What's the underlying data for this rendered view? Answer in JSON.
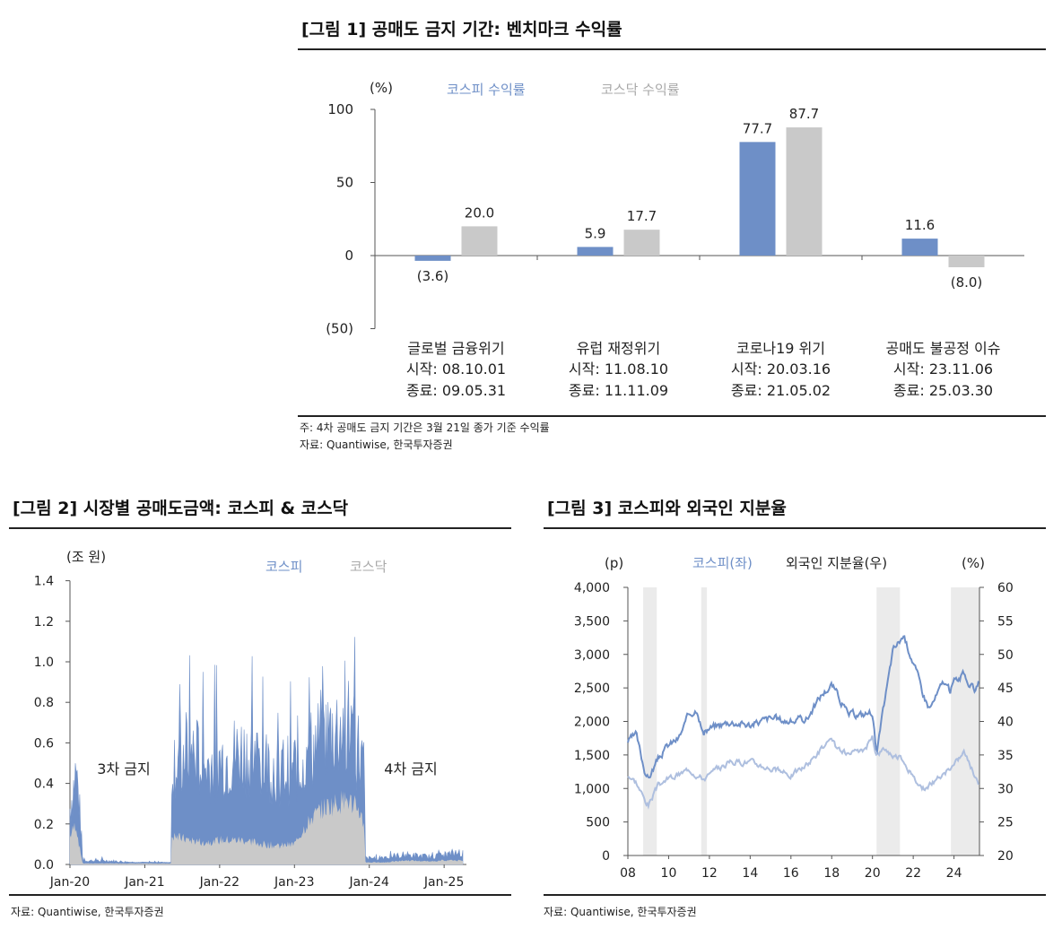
{
  "figures": {
    "fig1": {
      "title": "[그림 1] 공매도 금지 기간: 벤치마크 수익률",
      "note1": "주: 4차 공매도 금지 기간은 3월 21일 종가 기준 수익률",
      "note2": "자료: Quantiwise, 한국투자증권"
    },
    "fig2": {
      "title": "[그림 2] 시장별 공매도금액: 코스피 & 코스닥",
      "note": "자료: Quantiwise, 한국투자증권"
    },
    "fig3": {
      "title": "[그림 3] 코스피와 외국인 지분율",
      "note": "자료: Quantiwise, 한국투자증권"
    }
  },
  "colors": {
    "kospi": "#6e8fc7",
    "kosdaq": "#c9c9c9",
    "kospi_light": "#aebfdf",
    "shade": "#ebebeb"
  },
  "chart_data": [
    {
      "type": "bar",
      "unit_label": "(%)",
      "ylim": [
        -50,
        100
      ],
      "yticks": [
        "100",
        "50",
        "0",
        "(50)"
      ],
      "categories": [
        {
          "name": "글로벌 금융위기",
          "start": "시작: 08.10.01",
          "end": "종료: 09.05.31"
        },
        {
          "name": "유럽 재정위기",
          "start": "시작: 11.08.10",
          "end": "종료: 11.11.09"
        },
        {
          "name": "코로나19 위기",
          "start": "시작: 20.03.16",
          "end": "종료: 21.05.02"
        },
        {
          "name": "공매도 불공정 이슈",
          "start": "시작: 23.11.06",
          "end": "종료: 25.03.30"
        }
      ],
      "series": [
        {
          "name": "코스피 수익률",
          "values": [
            -3.6,
            5.9,
            77.7,
            11.6
          ],
          "labels": [
            "(3.6)",
            "5.9",
            "77.7",
            "11.6"
          ]
        },
        {
          "name": "코스닥 수익률",
          "values": [
            20.0,
            17.7,
            87.7,
            -8.0
          ],
          "labels": [
            "20.0",
            "17.7",
            "87.7",
            "(8.0)"
          ]
        }
      ]
    },
    {
      "type": "area",
      "unit_label": "(조 원)",
      "ylim": [
        0,
        1.4
      ],
      "yticks": [
        "0.0",
        "0.2",
        "0.4",
        "0.6",
        "0.8",
        "1.0",
        "1.2",
        "1.4"
      ],
      "xticks": [
        "Jan-20",
        "Jan-21",
        "Jan-22",
        "Jan-23",
        "Jan-24",
        "Jan-25"
      ],
      "series_names": [
        "코스피",
        "코스닥"
      ],
      "annotations": [
        "3차 금지",
        "4차 금지"
      ],
      "x": [
        2020.0,
        2020.08,
        2020.12,
        2020.17,
        2020.5,
        2020.9,
        2021.1,
        2021.35,
        2021.36,
        2021.6,
        2021.8,
        2022.0,
        2022.3,
        2022.6,
        2022.8,
        2023.0,
        2023.2,
        2023.4,
        2023.55,
        2023.7,
        2023.85,
        2023.93,
        2023.95,
        2024.2,
        2024.5,
        2024.8,
        2025.0,
        2025.2,
        2025.25
      ],
      "kospi_total": [
        0.3,
        0.5,
        0.35,
        0.02,
        0.02,
        0.01,
        0.01,
        0.01,
        0.55,
        0.62,
        0.52,
        0.55,
        0.6,
        0.55,
        0.5,
        0.52,
        0.6,
        0.68,
        0.72,
        0.75,
        0.62,
        0.5,
        0.03,
        0.04,
        0.05,
        0.04,
        0.05,
        0.06,
        0.06
      ],
      "kosdaq": [
        0.14,
        0.2,
        0.1,
        0.005,
        0.005,
        0.005,
        0.005,
        0.005,
        0.14,
        0.12,
        0.11,
        0.12,
        0.12,
        0.1,
        0.09,
        0.1,
        0.22,
        0.28,
        0.3,
        0.32,
        0.28,
        0.2,
        0.01,
        0.01,
        0.02,
        0.015,
        0.02,
        0.02,
        0.02
      ]
    },
    {
      "type": "line",
      "left_unit": "(p)",
      "right_unit": "(%)",
      "series_names": [
        "코스피(좌)",
        "외국인 지분율(우)"
      ],
      "ylim_left": [
        0,
        4000
      ],
      "ylim_right": [
        20,
        60
      ],
      "yticks_left": [
        "0",
        "500",
        "1,000",
        "1,500",
        "2,000",
        "2,500",
        "3,000",
        "3,500",
        "4,000"
      ],
      "yticks_right": [
        "20",
        "25",
        "30",
        "35",
        "40",
        "45",
        "50",
        "55",
        "60"
      ],
      "xticks": [
        "08",
        "10",
        "12",
        "14",
        "16",
        "18",
        "20",
        "22",
        "24"
      ],
      "shaded_periods": [
        [
          2008.75,
          2009.42
        ],
        [
          2011.6,
          2011.88
        ],
        [
          2020.2,
          2021.35
        ],
        [
          2023.85,
          2025.25
        ]
      ],
      "x": [
        2008.0,
        2008.4,
        2008.8,
        2009.0,
        2009.5,
        2010.0,
        2010.5,
        2011.0,
        2011.4,
        2011.7,
        2012.0,
        2012.5,
        2013.0,
        2014.0,
        2015.0,
        2016.0,
        2016.8,
        2017.5,
        2018.0,
        2018.3,
        2018.8,
        2019.5,
        2020.0,
        2020.2,
        2020.6,
        2021.0,
        2021.5,
        2022.0,
        2022.5,
        2022.8,
        2023.0,
        2023.5,
        2023.8,
        2024.0,
        2024.5,
        2025.0,
        2025.2
      ],
      "kospi": [
        1700,
        1800,
        1300,
        1150,
        1450,
        1650,
        1750,
        2100,
        2200,
        1800,
        1900,
        1950,
        2000,
        1950,
        2050,
        2000,
        2050,
        2400,
        2550,
        2400,
        2100,
        2100,
        2150,
        1500,
        2300,
        3050,
        3280,
        2900,
        2400,
        2200,
        2300,
        2600,
        2450,
        2600,
        2700,
        2450,
        2620
      ],
      "foreign_share": [
        32,
        31,
        28.5,
        27.5,
        30.5,
        31.5,
        32,
        33,
        32,
        31.5,
        32,
        33,
        34,
        34,
        33,
        32,
        33.5,
        36,
        37,
        35.8,
        35,
        35.5,
        37.5,
        35,
        36,
        35,
        34.5,
        31.5,
        30,
        30.5,
        31,
        32,
        33,
        33.5,
        35.5,
        32,
        31
      ]
    }
  ]
}
